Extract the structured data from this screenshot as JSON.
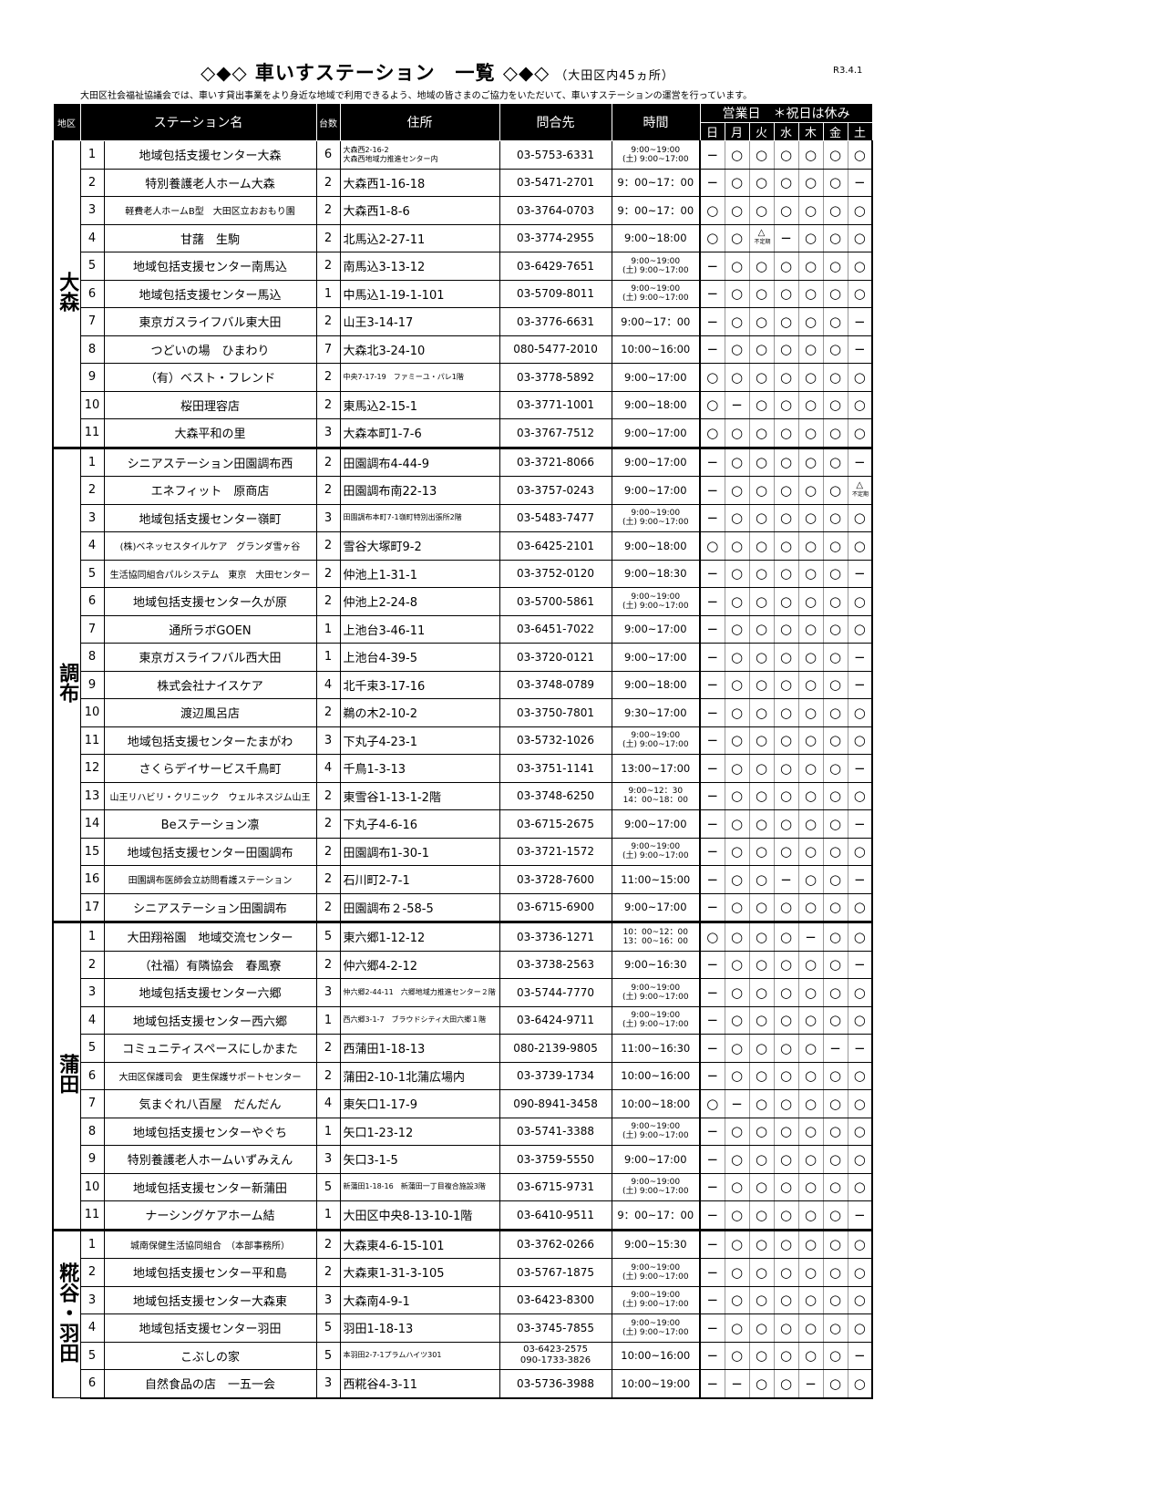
{
  "header": {
    "title": "◇◆◇ 車いすステーション　一覧 ◇◆◇",
    "subtitle": "（大田区内45ヵ所）",
    "date": "R3.4.1",
    "intro": "大田区社会福祉協議会では、車いす貸出事業をより身近な地域で利用できるよう、地域の皆さまのご協力をいただいて、車いすステーションの運営を行っています。"
  },
  "columns": {
    "region": "地区",
    "name": "ステーション名",
    "count": "台数",
    "address": "住所",
    "phone": "問合先",
    "time": "時間",
    "days_header": "営業日　＊祝日は休み",
    "days": [
      "日",
      "月",
      "火",
      "水",
      "木",
      "金",
      "土"
    ]
  },
  "legend": {
    "open": "○",
    "closed": "−",
    "irregular": "△",
    "irregular_note": "不定期"
  },
  "groups": [
    {
      "region": "大森",
      "rows": [
        {
          "no": "1",
          "name": "地域包括支援センター大森",
          "count": "6",
          "address": "大森西2-16-2\n大森西地域力推進センター内",
          "phone": "03-5753-6331",
          "time": "9:00~19:00\n(土) 9:00~17:00",
          "days": "−○○○○○○"
        },
        {
          "no": "2",
          "name": "特別養護老人ホーム大森",
          "count": "2",
          "address": "大森西1-16-18",
          "phone": "03-5471-2701",
          "time": "9：00~17：00",
          "days": "−○○○○○−"
        },
        {
          "no": "3",
          "name": "軽費老人ホームB型　大田区立おおもり園",
          "count": "2",
          "address": "大森西1-8-6",
          "phone": "03-3764-0703",
          "time": "9：00~17：00",
          "days": "○○○○○○○"
        },
        {
          "no": "4",
          "name": "甘藷　生駒",
          "count": "2",
          "address": "北馬込2-27-11",
          "phone": "03-3774-2955",
          "time": "9:00~18:00",
          "days": "○○△−○○○"
        },
        {
          "no": "5",
          "name": "地域包括支援センター南馬込",
          "count": "2",
          "address": "南馬込3-13-12",
          "phone": "03-6429-7651",
          "time": "9:00~19:00\n(土) 9:00~17:00",
          "days": "−○○○○○○"
        },
        {
          "no": "6",
          "name": "地域包括支援センター馬込",
          "count": "1",
          "address": "中馬込1-19-1-101",
          "phone": "03-5709-8011",
          "time": "9:00~19:00\n(土) 9:00~17:00",
          "days": "−○○○○○○"
        },
        {
          "no": "7",
          "name": "東京ガスライフバル東大田",
          "count": "2",
          "address": "山王3-14-17",
          "phone": "03-3776-6631",
          "time": "9:00~17：00",
          "days": "−○○○○○−"
        },
        {
          "no": "8",
          "name": "つどいの場　ひまわり",
          "count": "7",
          "address": "大森北3-24-10",
          "phone": "080-5477-2010",
          "time": "10:00~16:00",
          "days": "−○○○○○−"
        },
        {
          "no": "9",
          "name": "（有）ベスト・フレンド",
          "count": "2",
          "address": "中央7-17-19　ファミーユ・パレ1階",
          "phone": "03-3778-5892",
          "time": "9:00~17:00",
          "days": "○○○○○○○"
        },
        {
          "no": "10",
          "name": "桜田理容店",
          "count": "2",
          "address": "東馬込2-15-1",
          "phone": "03-3771-1001",
          "time": "9:00~18:00",
          "days": "○−○○○○○"
        },
        {
          "no": "11",
          "name": "大森平和の里",
          "count": "3",
          "address": "大森本町1-7-6",
          "phone": "03-3767-7512",
          "time": "9:00~17:00",
          "days": "○○○○○○○"
        }
      ]
    },
    {
      "region": "調布",
      "rows": [
        {
          "no": "1",
          "name": "シニアステーション田園調布西",
          "count": "2",
          "address": "田園調布4-44-9",
          "phone": "03-3721-8066",
          "time": "9:00~17:00",
          "days": "−○○○○○−"
        },
        {
          "no": "2",
          "name": "エネフィット　原商店",
          "count": "2",
          "address": "田園調布南22-13",
          "phone": "03-3757-0243",
          "time": "9:00~17:00",
          "days": "−○○○○○△"
        },
        {
          "no": "3",
          "name": "地域包括支援センター嶺町",
          "count": "3",
          "address": "田園調布本町7-1嶺町特別出張所2階",
          "phone": "03-5483-7477",
          "time": "9:00~19:00\n(土) 9:00~17:00",
          "days": "−○○○○○○"
        },
        {
          "no": "4",
          "name": "(株)ベネッセスタイルケア　グランダ雪ヶ谷",
          "count": "2",
          "address": "雪谷大塚町9-2",
          "phone": "03-6425-2101",
          "time": "9:00~18:00",
          "days": "○○○○○○○"
        },
        {
          "no": "5",
          "name": "生活協同組合パルシステム　東京　大田センター",
          "count": "2",
          "address": "仲池上1-31-1",
          "phone": "03-3752-0120",
          "time": "9:00~18:30",
          "days": "−○○○○○−"
        },
        {
          "no": "6",
          "name": "地域包括支援センター久が原",
          "count": "2",
          "address": "仲池上2-24-8",
          "phone": "03-5700-5861",
          "time": "9:00~19:00\n(土) 9:00~17:00",
          "days": "−○○○○○○"
        },
        {
          "no": "7",
          "name": "通所ラボGOEN",
          "count": "1",
          "address": "上池台3-46-11",
          "phone": "03-6451-7022",
          "time": "9:00~17:00",
          "days": "−○○○○○○"
        },
        {
          "no": "8",
          "name": "東京ガスライフバル西大田",
          "count": "1",
          "address": "上池台4-39-5",
          "phone": "03-3720-0121",
          "time": "9:00~17:00",
          "days": "−○○○○○−"
        },
        {
          "no": "9",
          "name": "株式会社ナイスケア",
          "count": "4",
          "address": "北千束3-17-16",
          "phone": "03-3748-0789",
          "time": "9:00~18:00",
          "days": "−○○○○○−"
        },
        {
          "no": "10",
          "name": "渡辺風呂店",
          "count": "2",
          "address": "鵜の木2-10-2",
          "phone": "03-3750-7801",
          "time": "9:30~17:00",
          "days": "−○○○○○○"
        },
        {
          "no": "11",
          "name": "地域包括支援センターたまがわ",
          "count": "3",
          "address": "下丸子4-23-1",
          "phone": "03-5732-1026",
          "time": "9:00~19:00\n(土) 9:00~17:00",
          "days": "−○○○○○○"
        },
        {
          "no": "12",
          "name": "さくらデイサービス千鳥町",
          "count": "4",
          "address": "千鳥1-3-13",
          "phone": "03-3751-1141",
          "time": "13:00~17:00",
          "days": "−○○○○○−"
        },
        {
          "no": "13",
          "name": "山王リハビリ・クリニック　ウェルネスジム山王",
          "count": "2",
          "address": "東雪谷1-13-1-2階",
          "phone": "03-3748-6250",
          "time": "9:00~12：30\n14：00~18：00",
          "days": "−○○○○○○"
        },
        {
          "no": "14",
          "name": "Beステーション凛",
          "count": "2",
          "address": "下丸子4-6-16",
          "phone": "03-6715-2675",
          "time": "9:00~17:00",
          "days": "−○○○○○−"
        },
        {
          "no": "15",
          "name": "地域包括支援センター田園調布",
          "count": "2",
          "address": "田園調布1-30-1",
          "phone": "03-3721-1572",
          "time": "9:00~19:00\n(土) 9:00~17:00",
          "days": "−○○○○○○"
        },
        {
          "no": "16",
          "name": "田園調布医師会立訪問看護ステーション",
          "count": "2",
          "address": "石川町2-7-1",
          "phone": "03-3728-7600",
          "time": "11:00~15:00",
          "days": "−○○−○○−"
        },
        {
          "no": "17",
          "name": "シニアステーション田園調布",
          "count": "2",
          "address": "田園調布２-58-5",
          "phone": "03-6715-6900",
          "time": "9:00~17:00",
          "days": "−○○○○○○"
        }
      ]
    },
    {
      "region": "蒲田",
      "rows": [
        {
          "no": "1",
          "name": "大田翔裕園　地域交流センター",
          "count": "5",
          "address": "東六郷1-12-12",
          "phone": "03-3736-1271",
          "time": "10：00~12：00\n13：00~16：00",
          "days": "○○○○−○○"
        },
        {
          "no": "2",
          "name": "（社福）有隣協会　春風寮",
          "count": "2",
          "address": "仲六郷4-2-12",
          "phone": "03-3738-2563",
          "time": "9:00~16:30",
          "days": "−○○○○○−"
        },
        {
          "no": "3",
          "name": "地域包括支援センター六郷",
          "count": "3",
          "address": "仲六郷2-44-11　六郷地域力推進センター２階",
          "phone": "03-5744-7770",
          "time": "9:00~19:00\n(土) 9:00~17:00",
          "days": "−○○○○○○"
        },
        {
          "no": "4",
          "name": "地域包括支援センター西六郷",
          "count": "1",
          "address": "西六郷3-1-7　ブラウドシティ大田六郷１階",
          "phone": "03-6424-9711",
          "time": "9:00~19:00\n(土) 9:00~17:00",
          "days": "−○○○○○○"
        },
        {
          "no": "5",
          "name": "コミュニティスペースにしかまた",
          "count": "2",
          "address": "西蒲田1-18-13",
          "phone": "080-2139-9805",
          "time": "11:00~16:30",
          "days": "−○○○○−−"
        },
        {
          "no": "6",
          "name": "大田区保護司会　更生保護サポートセンター",
          "count": "2",
          "address": "蒲田2-10-1北蒲広場内",
          "phone": "03-3739-1734",
          "time": "10:00~16:00",
          "days": "−○○○○○○"
        },
        {
          "no": "7",
          "name": "気まぐれ八百屋　だんだん",
          "count": "4",
          "address": "東矢口1-17-9",
          "phone": "090-8941-3458",
          "time": "10:00~18:00",
          "days": "○−○○○○○"
        },
        {
          "no": "8",
          "name": "地域包括支援センターやぐち",
          "count": "1",
          "address": "矢口1-23-12",
          "phone": "03-5741-3388",
          "time": "9:00~19:00\n(土) 9:00~17:00",
          "days": "−○○○○○○"
        },
        {
          "no": "9",
          "name": "特別養護老人ホームいずみえん",
          "count": "3",
          "address": "矢口3-1-5",
          "phone": "03-3759-5550",
          "time": "9:00~17:00",
          "days": "−○○○○○○"
        },
        {
          "no": "10",
          "name": "地域包括支援センター新蒲田",
          "count": "5",
          "address": "新蒲田1-18-16　新蒲田一丁目複合施設3階",
          "phone": "03-6715-9731",
          "time": "9:00~19:00\n(土) 9:00~17:00",
          "days": "−○○○○○○"
        },
        {
          "no": "11",
          "name": "ナーシングケアホーム結",
          "count": "1",
          "address": "大田区中央8-13-10-1階",
          "phone": "03-6410-9511",
          "time": "9：00~17：00",
          "days": "−○○○○○−"
        }
      ]
    },
    {
      "region": "糀谷・羽田",
      "rows": [
        {
          "no": "1",
          "name": "城南保健生活協同組合　（本部事務所）",
          "count": "2",
          "address": "大森東4-6-15-101",
          "phone": "03-3762-0266",
          "time": "9:00~15:30",
          "days": "−○○○○○○"
        },
        {
          "no": "2",
          "name": "地域包括支援センター平和島",
          "count": "2",
          "address": "大森東1-31-3-105",
          "phone": "03-5767-1875",
          "time": "9:00~19:00\n(土) 9:00~17:00",
          "days": "−○○○○○○"
        },
        {
          "no": "3",
          "name": "地域包括支援センター大森東",
          "count": "3",
          "address": "大森南4-9-1",
          "phone": "03-6423-8300",
          "time": "9:00~19:00\n(土) 9:00~17:00",
          "days": "−○○○○○○"
        },
        {
          "no": "4",
          "name": "地域包括支援センター羽田",
          "count": "5",
          "address": "羽田1-18-13",
          "phone": "03-3745-7855",
          "time": "9:00~19:00\n(土) 9:00~17:00",
          "days": "−○○○○○○"
        },
        {
          "no": "5",
          "name": "こぶしの家",
          "count": "5",
          "address": "本羽田2-7-1プラムハイツ301",
          "phone": "03-6423-2575\n090-1733-3826",
          "time": "10:00~16:00",
          "days": "−○○○○○−"
        },
        {
          "no": "6",
          "name": "自然食品の店　一五一会",
          "count": "3",
          "address": "西糀谷4-3-11",
          "phone": "03-5736-3988",
          "time": "10:00~19:00",
          "days": "−−○○−○○"
        }
      ]
    }
  ]
}
